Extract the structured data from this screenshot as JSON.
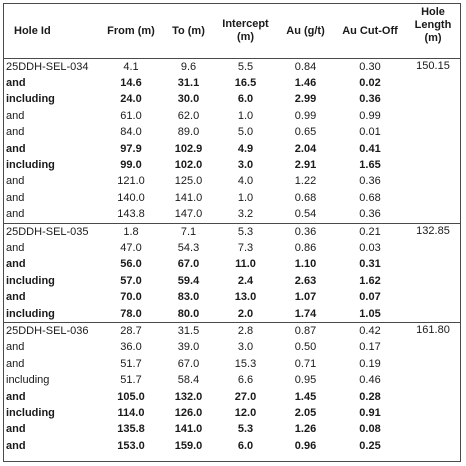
{
  "headers": {
    "hole_id": "Hole Id",
    "from": "From (m)",
    "to": "To (m)",
    "intercept": "Intercept (m)",
    "au": "Au (g/t)",
    "cutoff": "Au Cut-Off",
    "length": "Hole Length (m)"
  },
  "groups": [
    {
      "hole_length": "150.15",
      "rows": [
        {
          "label": "25DDH-SEL-034",
          "from": "4.1",
          "to": "9.6",
          "intercept": "5.5",
          "au": "0.84",
          "cutoff": "0.30",
          "bold": false
        },
        {
          "label": "and",
          "from": "14.6",
          "to": "31.1",
          "intercept": "16.5",
          "au": "1.46",
          "cutoff": "0.02",
          "bold": true
        },
        {
          "label": "including",
          "from": "24.0",
          "to": "30.0",
          "intercept": "6.0",
          "au": "2.99",
          "cutoff": "0.36",
          "bold": true
        },
        {
          "label": "and",
          "from": "61.0",
          "to": "62.0",
          "intercept": "1.0",
          "au": "0.99",
          "cutoff": "0.99",
          "bold": false
        },
        {
          "label": "and",
          "from": "84.0",
          "to": "89.0",
          "intercept": "5.0",
          "au": "0.65",
          "cutoff": "0.01",
          "bold": false
        },
        {
          "label": "and",
          "from": "97.9",
          "to": "102.9",
          "intercept": "4.9",
          "au": "2.04",
          "cutoff": "0.41",
          "bold": true
        },
        {
          "label": "including",
          "from": "99.0",
          "to": "102.0",
          "intercept": "3.0",
          "au": "2.91",
          "cutoff": "1.65",
          "bold": true
        },
        {
          "label": "and",
          "from": "121.0",
          "to": "125.0",
          "intercept": "4.0",
          "au": "1.22",
          "cutoff": "0.36",
          "bold": false
        },
        {
          "label": "and",
          "from": "140.0",
          "to": "141.0",
          "intercept": "1.0",
          "au": "0.68",
          "cutoff": "0.68",
          "bold": false
        },
        {
          "label": "and",
          "from": "143.8",
          "to": "147.0",
          "intercept": "3.2",
          "au": "0.54",
          "cutoff": "0.36",
          "bold": false
        }
      ]
    },
    {
      "hole_length": "132.85",
      "rows": [
        {
          "label": "25DDH-SEL-035",
          "from": "1.8",
          "to": "7.1",
          "intercept": "5.3",
          "au": "0.36",
          "cutoff": "0.21",
          "bold": false
        },
        {
          "label": "and",
          "from": "47.0",
          "to": "54.3",
          "intercept": "7.3",
          "au": "0.86",
          "cutoff": "0.03",
          "bold": false
        },
        {
          "label": "and",
          "from": "56.0",
          "to": "67.0",
          "intercept": "11.0",
          "au": "1.10",
          "cutoff": "0.31",
          "bold": true
        },
        {
          "label": "including",
          "from": "57.0",
          "to": "59.4",
          "intercept": "2.4",
          "au": "2.63",
          "cutoff": "1.62",
          "bold": true
        },
        {
          "label": "and",
          "from": "70.0",
          "to": "83.0",
          "intercept": "13.0",
          "au": "1.07",
          "cutoff": "0.07",
          "bold": true
        },
        {
          "label": "including",
          "from": "78.0",
          "to": "80.0",
          "intercept": "2.0",
          "au": "1.74",
          "cutoff": "1.05",
          "bold": true
        }
      ]
    },
    {
      "hole_length": "161.80",
      "rows": [
        {
          "label": "25DDH-SEL-036",
          "from": "28.7",
          "to": "31.5",
          "intercept": "2.8",
          "au": "0.87",
          "cutoff": "0.42",
          "bold": false
        },
        {
          "label": "and",
          "from": "36.0",
          "to": "39.0",
          "intercept": "3.0",
          "au": "0.50",
          "cutoff": "0.17",
          "bold": false
        },
        {
          "label": "and",
          "from": "51.7",
          "to": "67.0",
          "intercept": "15.3",
          "au": "0.71",
          "cutoff": "0.19",
          "bold": false
        },
        {
          "label": "including",
          "from": "51.7",
          "to": "58.4",
          "intercept": "6.6",
          "au": "0.95",
          "cutoff": "0.46",
          "bold": false
        },
        {
          "label": "and",
          "from": "105.0",
          "to": "132.0",
          "intercept": "27.0",
          "au": "1.45",
          "cutoff": "0.28",
          "bold": true
        },
        {
          "label": "including",
          "from": "114.0",
          "to": "126.0",
          "intercept": "12.0",
          "au": "2.05",
          "cutoff": "0.91",
          "bold": true
        },
        {
          "label": "and",
          "from": "135.8",
          "to": "141.0",
          "intercept": "5.3",
          "au": "1.26",
          "cutoff": "0.08",
          "bold": true
        },
        {
          "label": "and",
          "from": "153.0",
          "to": "159.0",
          "intercept": "6.0",
          "au": "0.96",
          "cutoff": "0.25",
          "bold": true
        }
      ]
    }
  ]
}
